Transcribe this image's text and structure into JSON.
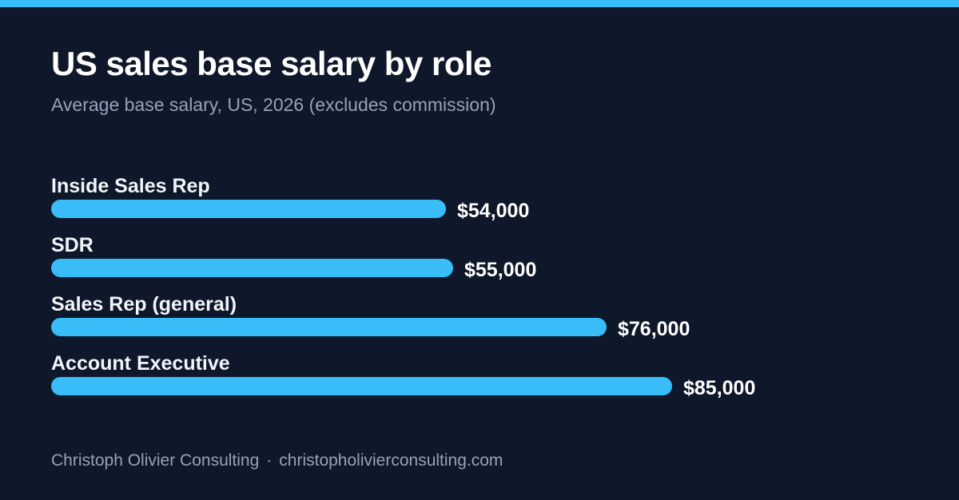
{
  "colors": {
    "background": "#0f172a",
    "accent": "#38bdf8",
    "title": "#ffffff",
    "muted": "#94a3b8"
  },
  "title": "US sales base salary by role",
  "subtitle": "Average base salary, US, 2026 (excludes commission)",
  "footer": {
    "brand": "Christoph Olivier Consulting",
    "separator": "·",
    "website": "christopholivierconsulting.com"
  },
  "chart_data": {
    "type": "bar",
    "orientation": "horizontal",
    "title": "US sales base salary by role",
    "subtitle": "Average base salary, US, 2026 (excludes commission)",
    "xlabel": "",
    "ylabel": "",
    "categories": [
      "Inside Sales Rep",
      "SDR",
      "Sales Rep (general)",
      "Account Executive"
    ],
    "values": [
      54000,
      55000,
      76000,
      85000
    ],
    "value_labels": [
      "$54,000",
      "$55,000",
      "$76,000",
      "$85,000"
    ],
    "xlim": [
      0,
      100000
    ],
    "grid": false,
    "legend": "none"
  }
}
